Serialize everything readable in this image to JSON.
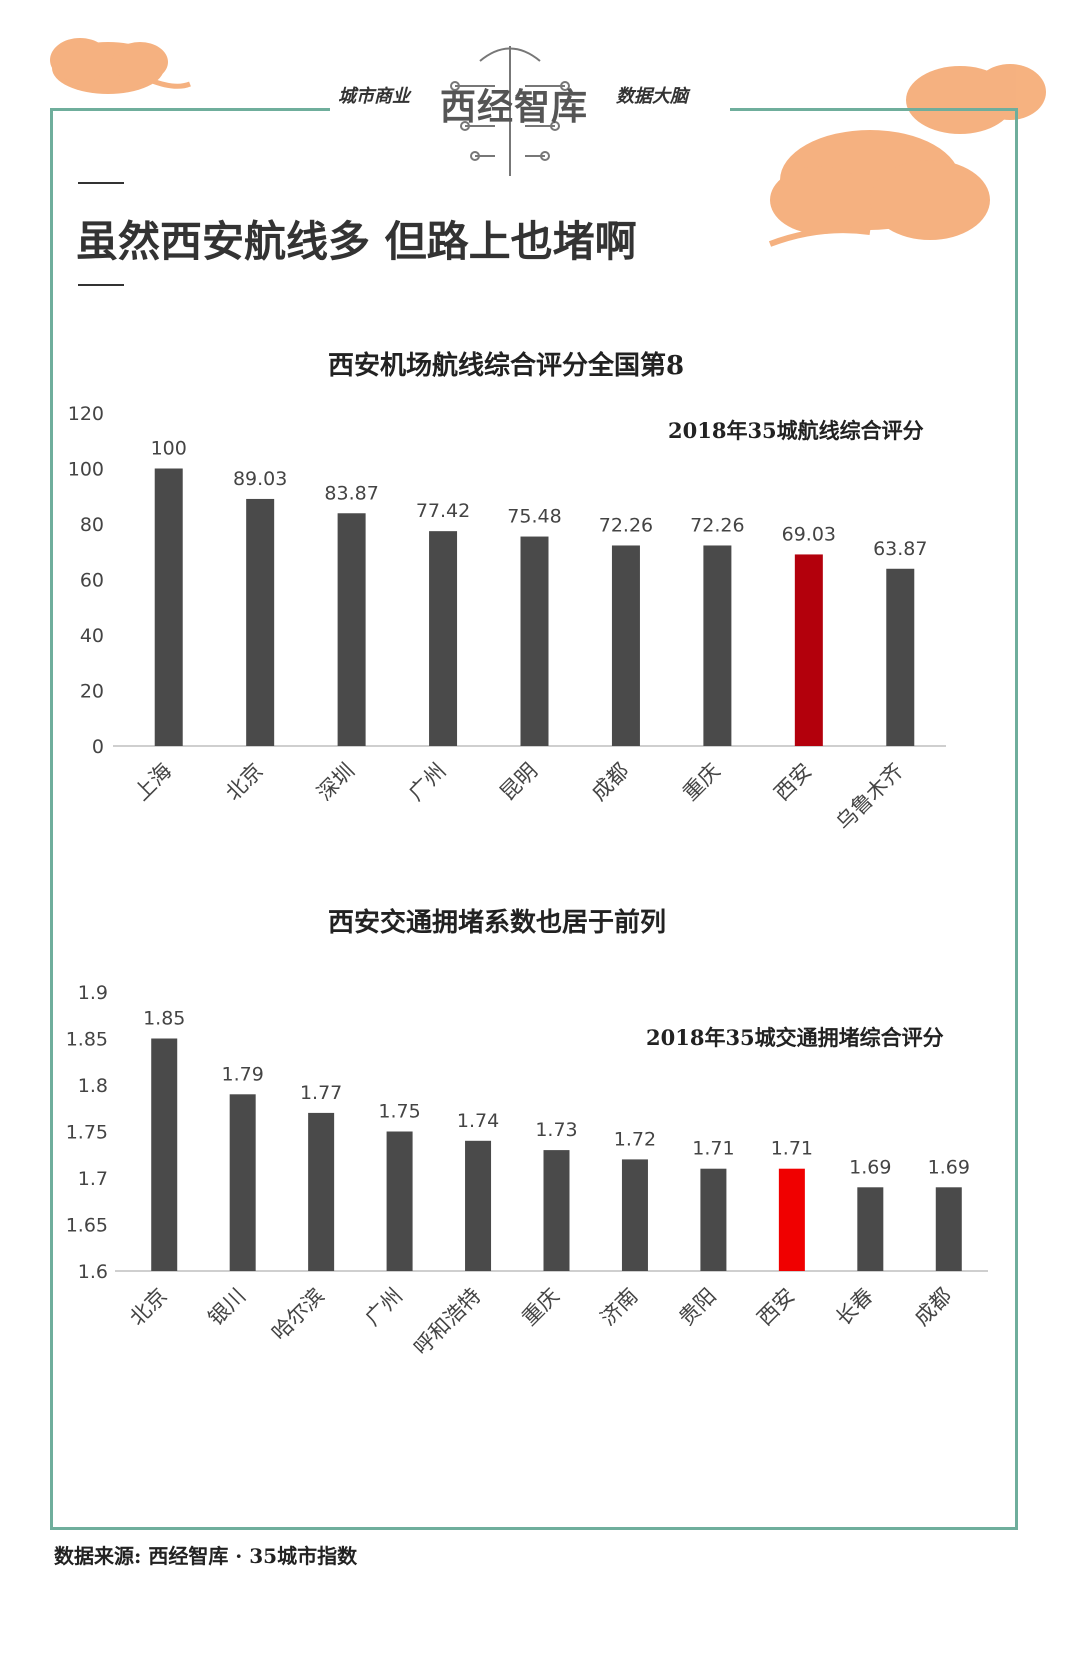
{
  "header": {
    "brand_left": "城市商业",
    "brand_name": "西经智库",
    "brand_right": "数据大脑",
    "headline": "虽然西安航线多 但路上也堵啊"
  },
  "colors": {
    "frame": "#6fae9c",
    "bar": "#4a4a4a",
    "highlight_dark": "#b3000c",
    "highlight": "#f00000",
    "cloud": "#f4a46a"
  },
  "icons": [
    "auspicious-cloud-icon",
    "circuit-brain-logo-icon"
  ],
  "chart_data": [
    {
      "type": "bar",
      "title": "西安机场航线综合评分全国第8",
      "subtitle": "2018年35城航线综合评分",
      "categories": [
        "上海",
        "北京",
        "深圳",
        "广州",
        "昆明",
        "成都",
        "重庆",
        "西安",
        "乌鲁木齐"
      ],
      "values": [
        100,
        89.03,
        83.87,
        77.42,
        75.48,
        72.26,
        72.26,
        69.03,
        63.87
      ],
      "value_labels": [
        "100",
        "89.03",
        "83.87",
        "77.42",
        "75.48",
        "72.26",
        "72.26",
        "69.03",
        "63.87"
      ],
      "highlight": "西安",
      "ylim": [
        0,
        120
      ],
      "yticks": [
        "0",
        "20",
        "40",
        "60",
        "80",
        "100",
        "120"
      ],
      "grid": false
    },
    {
      "type": "bar",
      "title": "西安交通拥堵系数也居于前列",
      "subtitle": "2018年35城交通拥堵综合评分",
      "categories": [
        "北京",
        "银川",
        "哈尔滨",
        "广州",
        "呼和浩特",
        "重庆",
        "济南",
        "贵阳",
        "西安",
        "长春",
        "成都"
      ],
      "values": [
        1.85,
        1.79,
        1.77,
        1.75,
        1.74,
        1.73,
        1.72,
        1.71,
        1.71,
        1.69,
        1.69
      ],
      "value_labels": [
        "1.85",
        "1.79",
        "1.77",
        "1.75",
        "1.74",
        "1.73",
        "1.72",
        "1.71",
        "1.71",
        "1.69",
        "1.69"
      ],
      "highlight": "西安",
      "ylim": [
        1.6,
        1.9
      ],
      "yticks": [
        "1.6",
        "1.65",
        "1.7",
        "1.75",
        "1.8",
        "1.85",
        "1.9"
      ],
      "grid": false
    }
  ],
  "footer": {
    "source": "数据来源: 西经智库 · 35城市指数"
  }
}
